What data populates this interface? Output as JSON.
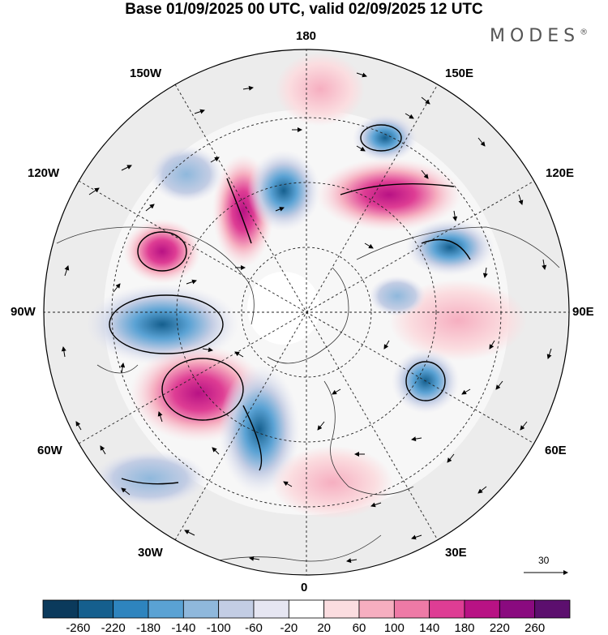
{
  "title": "Base 01/09/2025 00 UTC, valid 02/09/2025 12 UTC",
  "brand": "MODES",
  "brand_mark": "®",
  "longitude_labels": {
    "top": "180",
    "bottom": "0",
    "left": "90W",
    "right": "90E",
    "upper_left_1": "150W",
    "upper_left_2": "120W",
    "upper_right_1": "150E",
    "upper_right_2": "120E",
    "lower_left_1": "60W",
    "lower_left_2": "30W",
    "lower_right_1": "60E",
    "lower_right_2": "30E"
  },
  "wind_scale_label": "30",
  "colorbar": {
    "labels": [
      "-260",
      "-220",
      "-180",
      "-140",
      "-100",
      "-60",
      "-20",
      "20",
      "60",
      "100",
      "140",
      "180",
      "220",
      "260"
    ],
    "colors": [
      "#0b3a5c",
      "#155f8e",
      "#2e84be",
      "#5aa2d4",
      "#8fb8dc",
      "#c3cde4",
      "#e6e6f2",
      "#ffffff",
      "#fbdde0",
      "#f6aec0",
      "#ee7aa6",
      "#de3d94",
      "#b81284",
      "#8a0a7f",
      "#5c0f6e"
    ]
  },
  "anomalies": [
    {
      "name": "anomaly-pacific-ne",
      "color": "#ee7aa6"
    },
    {
      "name": "anomaly-canada-blue",
      "color": "#5aa2d4"
    },
    {
      "name": "anomaly-atlantic-pink",
      "color": "#de3d94"
    },
    {
      "name": "anomaly-atlantic-blue",
      "color": "#2e84be"
    },
    {
      "name": "anomaly-siberia-pink",
      "color": "#de3d94"
    },
    {
      "name": "anomaly-asia-blue",
      "color": "#5aa2d4"
    }
  ]
}
